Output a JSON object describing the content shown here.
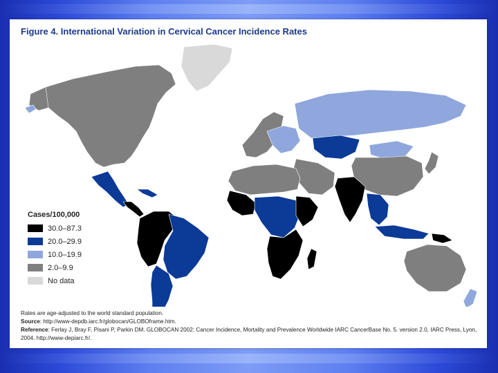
{
  "figure": {
    "title": "Figure 4. International Variation in Cervical Cancer Incidence Rates"
  },
  "legend": {
    "title": "Cases/100,000",
    "items": [
      {
        "label": "30.0–87.3",
        "color": "#000000"
      },
      {
        "label": "20.0–29.9",
        "color": "#0b3a97"
      },
      {
        "label": "10.0–19.9",
        "color": "#8fa7dc"
      },
      {
        "label": "2.0–9.9",
        "color": "#7f7f7f"
      },
      {
        "label": "No data",
        "color": "#d9d9d9"
      }
    ]
  },
  "notes": {
    "rates": "Rates are age-adjusted to the world standard population.",
    "source_label": "Source",
    "source": ": http://www-depdb.iarc.fr/globocan/GLOBOframe.htm.",
    "reference_label": "Reference",
    "reference": ": Ferlay J, Bray F, Pisani P, Parkin DM. GLOBOCAN 2002: Cancer Incidence, Mortality and Prevalence Worldwide IARC CancerBase No. 5. version 2.0, IARC Press, Lyon, 2004. http://www-depiarc.fr/."
  },
  "colors": {
    "high": "#000000",
    "upper_mid": "#0b3a97",
    "mid": "#8fa7dc",
    "low": "#7f7f7f",
    "no_data": "#d9d9d9",
    "title": "#1c3a8c"
  }
}
